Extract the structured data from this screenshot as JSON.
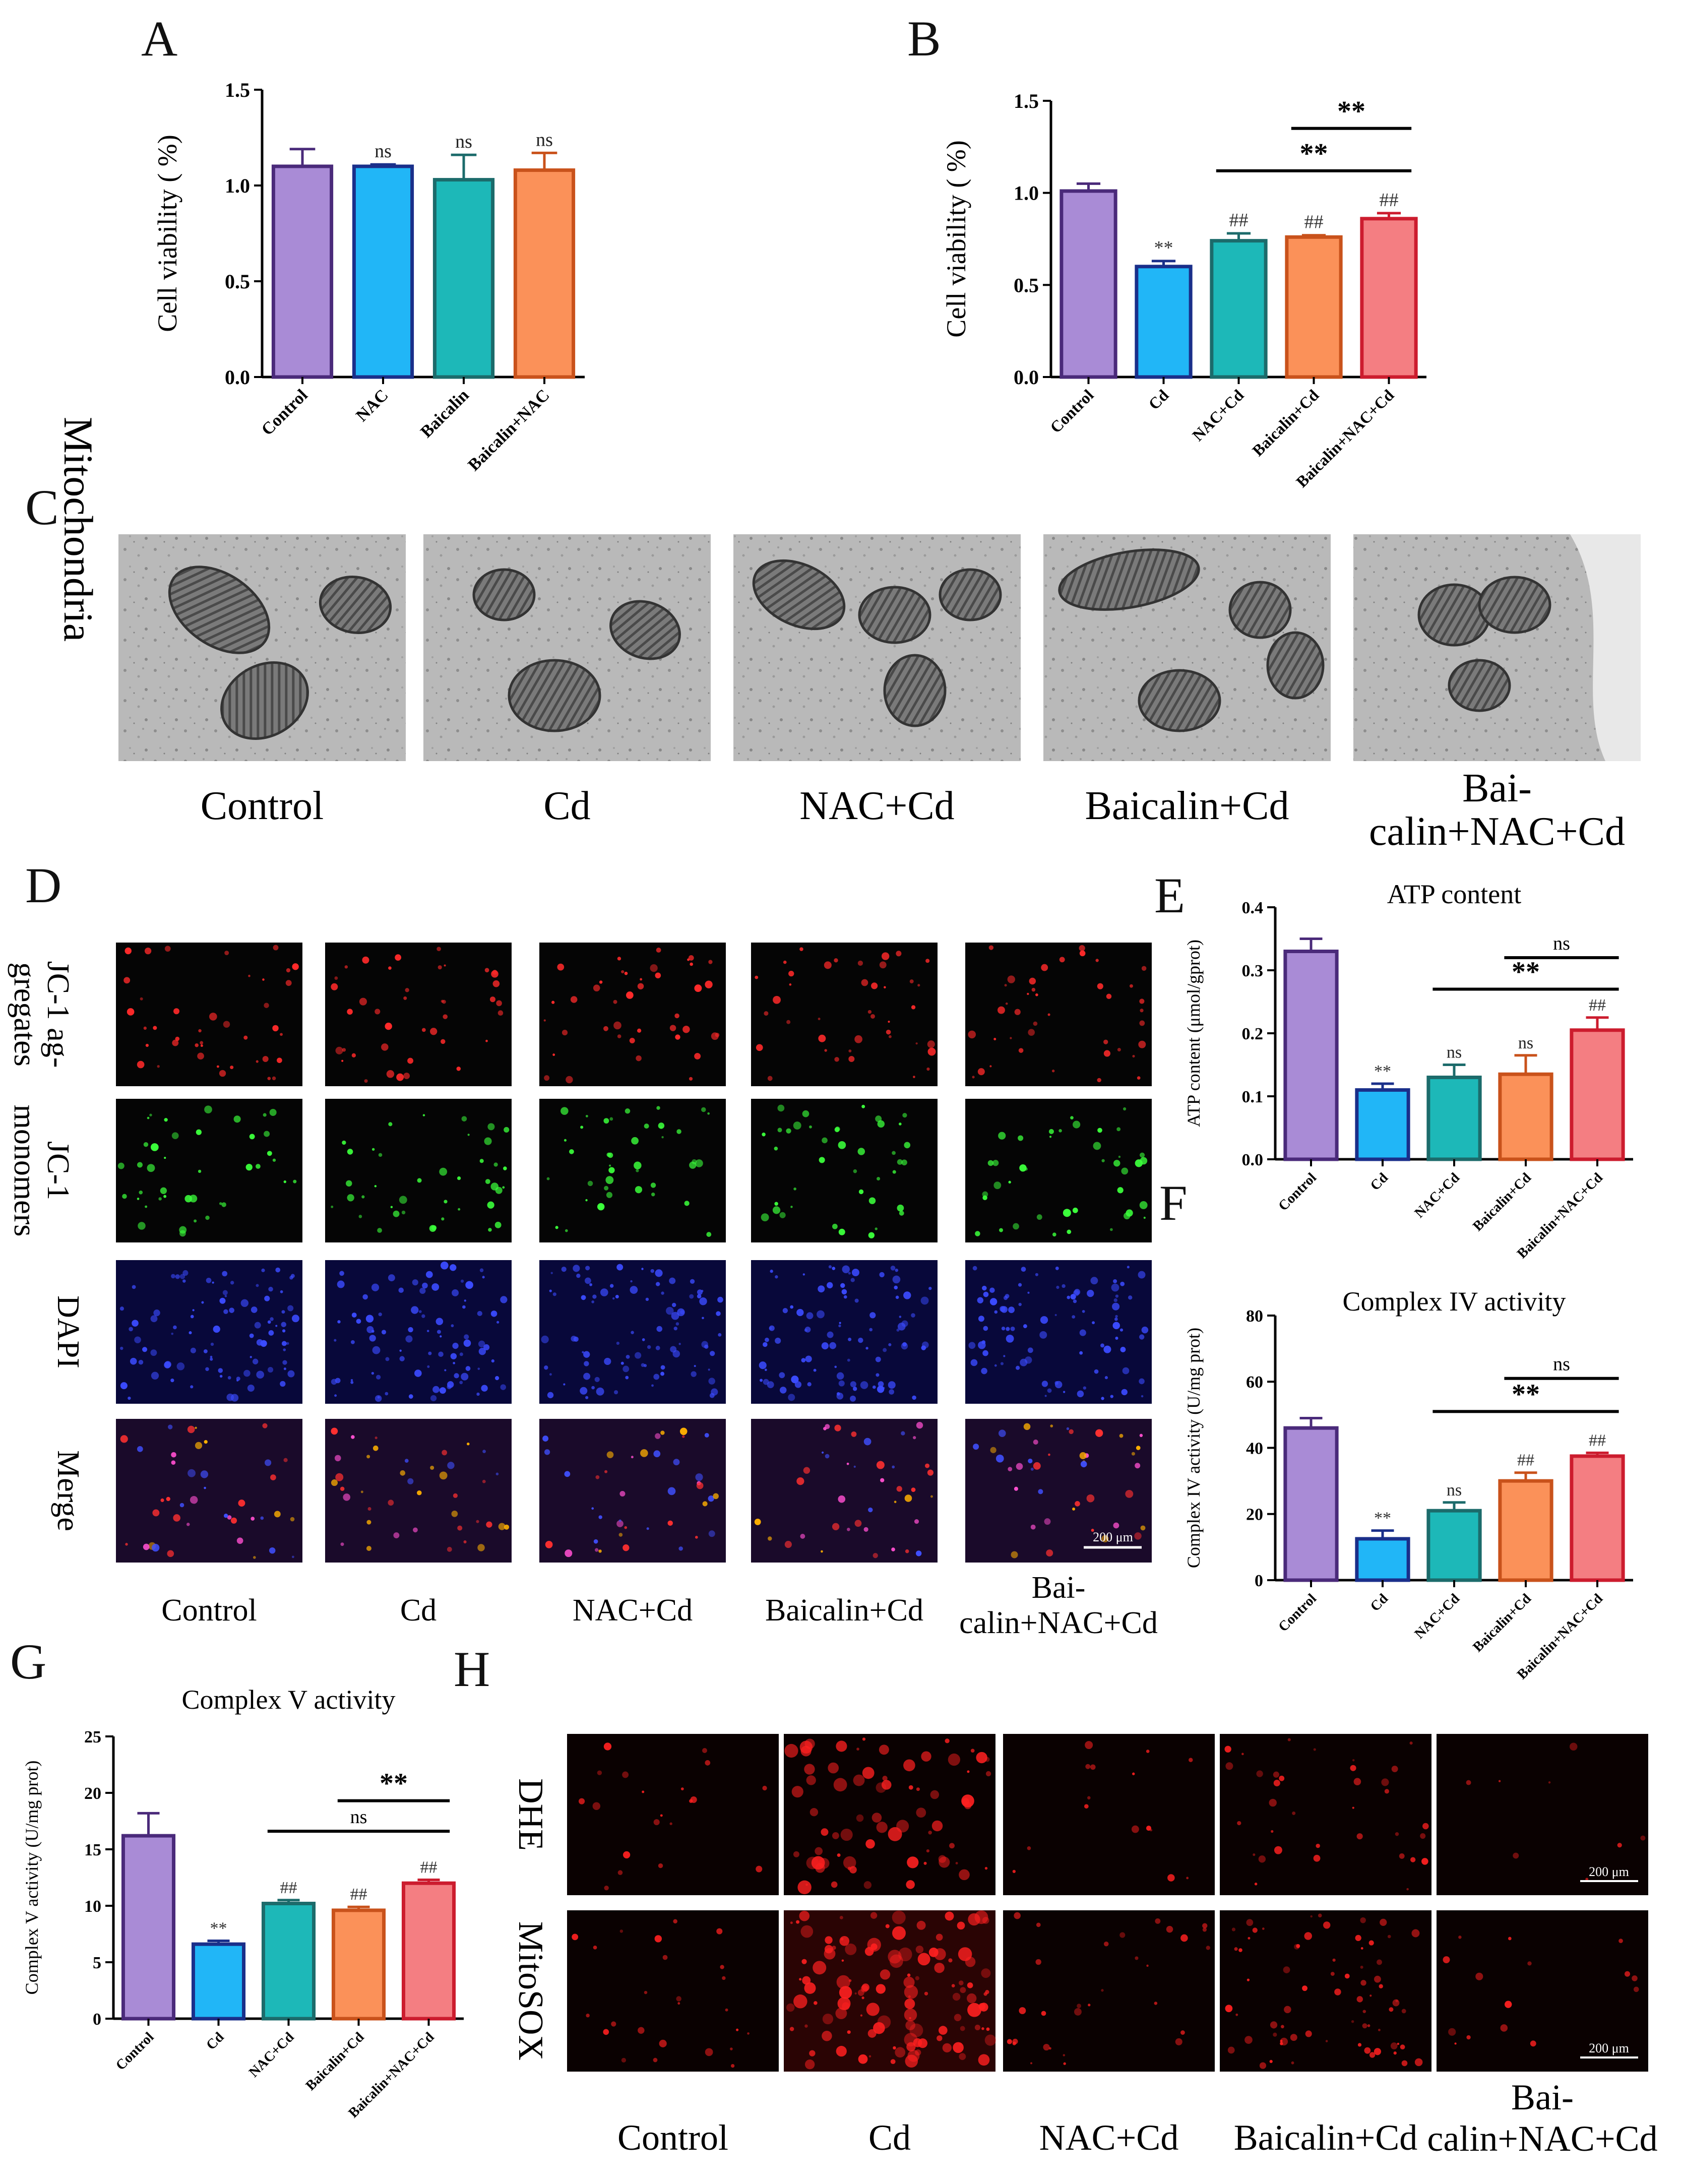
{
  "figure_panel_letters": [
    "A",
    "B",
    "C",
    "D",
    "E",
    "F",
    "G",
    "H"
  ],
  "colors": {
    "bar_edges": [
      "#4a2a7a",
      "#1a2f8a",
      "#1c6b6b",
      "#c9521b",
      "#cc1c2e"
    ],
    "bar_fills": [
      "#a98bd6",
      "#21b6f7",
      "#1db8b8",
      "#fb9159",
      "#f47e82"
    ]
  },
  "panel_C": {
    "row_label": "Mitochondria",
    "groups": [
      "Control",
      "Cd",
      "NAC+Cd",
      "Baicalin+Cd",
      "Bai-\ncalin+NAC+Cd"
    ]
  },
  "panel_D": {
    "row_labels": [
      "JC-1 ag-\ngregates",
      "JC-1\nmonomers",
      "DAPI",
      "Merge"
    ],
    "groups": [
      "Control",
      "Cd",
      "NAC+Cd",
      "Baicalin+Cd",
      "Bai-\ncalin+NAC+Cd"
    ],
    "scale_bar": "200 μm",
    "tile_colors": [
      "red",
      "green",
      "blue",
      "merge"
    ]
  },
  "panel_H": {
    "row_labels": [
      "DHE",
      "MitoSOX"
    ],
    "groups": [
      "Control",
      "Cd",
      "NAC+Cd",
      "Baicalin+Cd",
      "Bai-\ncalin+NAC+Cd"
    ],
    "scale_bars": [
      "200 μm",
      "200 μm"
    ]
  },
  "chart_data": [
    {
      "panel": "A",
      "type": "bar",
      "title": "",
      "ylabel": "Cell viability ( %)",
      "ylim": [
        0,
        1.5
      ],
      "yticks": [
        "0.0",
        "0.5",
        "1.0",
        "1.5"
      ],
      "categories": [
        "Control",
        "NAC",
        "Baicalin",
        "Baicalin+NAC"
      ],
      "values": [
        1.1,
        1.1,
        1.03,
        1.08
      ],
      "errors": [
        0.09,
        0.01,
        0.13,
        0.09
      ],
      "bar_labels": [
        "",
        "ns",
        "ns",
        "ns"
      ],
      "brackets": []
    },
    {
      "panel": "B",
      "type": "bar",
      "title": "",
      "ylabel": "Cell viability ( %)",
      "ylim": [
        0,
        1.5
      ],
      "yticks": [
        "0.0",
        "0.5",
        "1.0",
        "1.5"
      ],
      "categories": [
        "Control",
        "Cd",
        "NAC+Cd",
        "Baicalin+Cd",
        "Baicalin+NAC+Cd"
      ],
      "values": [
        1.01,
        0.6,
        0.74,
        0.76,
        0.86
      ],
      "errors": [
        0.04,
        0.03,
        0.04,
        0.01,
        0.03
      ],
      "bar_labels": [
        "",
        "**",
        "##",
        "##",
        "##"
      ],
      "brackets": [
        {
          "from": 3,
          "to": 4,
          "label": "**",
          "y": 1.35
        },
        {
          "from": 2,
          "to": 4,
          "label": "**",
          "y": 1.12
        }
      ]
    },
    {
      "panel": "E",
      "type": "bar",
      "title": "ATP content",
      "ylabel": "ATP content (μmol/gprot)",
      "ylim": [
        0,
        0.4
      ],
      "yticks": [
        "0.0",
        "0.1",
        "0.2",
        "0.3",
        "0.4"
      ],
      "categories": [
        "Control",
        "Cd",
        "NAC+Cd",
        "Baicalin+Cd",
        "Baicalin+NAC+Cd"
      ],
      "values": [
        0.33,
        0.11,
        0.13,
        0.135,
        0.205
      ],
      "errors": [
        0.02,
        0.01,
        0.02,
        0.03,
        0.02
      ],
      "bar_labels": [
        "",
        "**",
        "ns",
        "ns",
        "##"
      ],
      "brackets": [
        {
          "from": 3,
          "to": 4,
          "label": "ns",
          "y": 0.32
        },
        {
          "from": 2,
          "to": 4,
          "label": "**",
          "y": 0.27
        }
      ]
    },
    {
      "panel": "F",
      "type": "bar",
      "title": "Complex IV activity",
      "ylabel": "Complex IV activity (U/mg prot)",
      "ylim": [
        0,
        80
      ],
      "yticks": [
        "0",
        "20",
        "40",
        "60",
        "80"
      ],
      "categories": [
        "Control",
        "Cd",
        "NAC+Cd",
        "Baicalin+Cd",
        "Baicalin+NAC+Cd"
      ],
      "values": [
        46,
        12.5,
        21,
        30,
        37.5
      ],
      "errors": [
        3,
        2.5,
        2.5,
        2.5,
        1
      ],
      "bar_labels": [
        "",
        "**",
        "ns",
        "##",
        "##"
      ],
      "brackets": [
        {
          "from": 3,
          "to": 4,
          "label": "ns",
          "y": 61
        },
        {
          "from": 2,
          "to": 4,
          "label": "**",
          "y": 51
        }
      ]
    },
    {
      "panel": "G",
      "type": "bar",
      "title": "Complex V activity",
      "ylabel": "Complex V activity (U/mg prot)",
      "ylim": [
        0,
        25
      ],
      "yticks": [
        "0",
        "5",
        "10",
        "15",
        "20",
        "25"
      ],
      "categories": [
        "Control",
        "Cd",
        "NAC+Cd",
        "Baicalin+Cd",
        "Baicalin+NAC+Cd"
      ],
      "values": [
        16.2,
        6.6,
        10.2,
        9.6,
        12.0
      ],
      "errors": [
        2.0,
        0.3,
        0.3,
        0.3,
        0.3
      ],
      "bar_labels": [
        "",
        "**",
        "##",
        "##",
        "##"
      ],
      "brackets": [
        {
          "from": 3,
          "to": 4,
          "label": "**",
          "y": 19.3
        },
        {
          "from": 2,
          "to": 4,
          "label": "ns",
          "y": 16.6
        }
      ]
    }
  ]
}
